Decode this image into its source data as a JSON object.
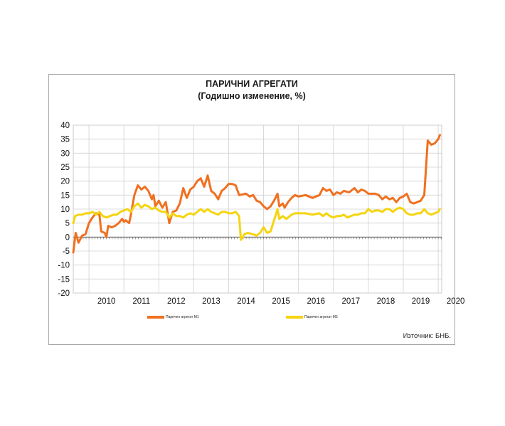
{
  "chart_data": {
    "type": "line",
    "title": "ПАРИЧНИ АГРЕГАТИ",
    "subtitle": "(Годишно изменение, %)",
    "ylim": [
      -20,
      40
    ],
    "yticks": [
      40,
      35,
      30,
      25,
      20,
      15,
      10,
      5,
      0,
      -5,
      -10,
      -15,
      -20
    ],
    "xlim": [
      2009.55,
      2020.1
    ],
    "x_tick_labels": [
      "2010",
      "2011",
      "2012",
      "2013",
      "2014",
      "2015",
      "2016",
      "2017",
      "2018",
      "2019",
      "2020"
    ],
    "grid": true,
    "legend_position": "bottom",
    "series": [
      {
        "name": "Паричен агрегат М1",
        "color": "#f07020",
        "points": [
          [
            2009.55,
            -5.5
          ],
          [
            2009.62,
            1.5
          ],
          [
            2009.7,
            -2
          ],
          [
            2009.8,
            0.5
          ],
          [
            2009.9,
            1
          ],
          [
            2010.0,
            5
          ],
          [
            2010.1,
            7
          ],
          [
            2010.2,
            8.5
          ],
          [
            2010.3,
            8
          ],
          [
            2010.35,
            2
          ],
          [
            2010.45,
            1.5
          ],
          [
            2010.5,
            0
          ],
          [
            2010.55,
            4
          ],
          [
            2010.65,
            3.5
          ],
          [
            2010.75,
            4
          ],
          [
            2010.85,
            5
          ],
          [
            2010.95,
            6.5
          ],
          [
            2011.0,
            5.5
          ],
          [
            2011.05,
            6
          ],
          [
            2011.15,
            5
          ],
          [
            2011.2,
            8
          ],
          [
            2011.3,
            15
          ],
          [
            2011.4,
            18.5
          ],
          [
            2011.5,
            17
          ],
          [
            2011.6,
            18
          ],
          [
            2011.7,
            16.5
          ],
          [
            2011.8,
            13.5
          ],
          [
            2011.85,
            15
          ],
          [
            2011.9,
            11
          ],
          [
            2012.0,
            13
          ],
          [
            2012.1,
            10.5
          ],
          [
            2012.2,
            12.5
          ],
          [
            2012.3,
            5
          ],
          [
            2012.4,
            9
          ],
          [
            2012.5,
            9.5
          ],
          [
            2012.6,
            12
          ],
          [
            2012.7,
            17.5
          ],
          [
            2012.8,
            14
          ],
          [
            2012.9,
            17
          ],
          [
            2013.0,
            18
          ],
          [
            2013.1,
            20
          ],
          [
            2013.2,
            21
          ],
          [
            2013.3,
            18
          ],
          [
            2013.4,
            22
          ],
          [
            2013.5,
            16.5
          ],
          [
            2013.6,
            15.5
          ],
          [
            2013.7,
            13.5
          ],
          [
            2013.8,
            16.5
          ],
          [
            2013.9,
            17.5
          ],
          [
            2014.0,
            19
          ],
          [
            2014.1,
            19
          ],
          [
            2014.2,
            18.5
          ],
          [
            2014.3,
            15
          ],
          [
            2014.5,
            15.5
          ],
          [
            2014.6,
            14.5
          ],
          [
            2014.7,
            15
          ],
          [
            2014.8,
            13
          ],
          [
            2014.9,
            12.5
          ],
          [
            2015.0,
            11
          ],
          [
            2015.1,
            10
          ],
          [
            2015.2,
            11
          ],
          [
            2015.3,
            13
          ],
          [
            2015.4,
            15.5
          ],
          [
            2015.45,
            11
          ],
          [
            2015.55,
            12
          ],
          [
            2015.6,
            10.5
          ],
          [
            2015.7,
            12.5
          ],
          [
            2015.8,
            14
          ],
          [
            2015.9,
            15
          ],
          [
            2016.0,
            14.5
          ],
          [
            2016.2,
            15
          ],
          [
            2016.4,
            14
          ],
          [
            2016.6,
            15
          ],
          [
            2016.7,
            17.5
          ],
          [
            2016.8,
            16.5
          ],
          [
            2016.9,
            17
          ],
          [
            2017.0,
            15
          ],
          [
            2017.1,
            16
          ],
          [
            2017.2,
            15.5
          ],
          [
            2017.3,
            16.5
          ],
          [
            2017.45,
            16
          ],
          [
            2017.6,
            17.5
          ],
          [
            2017.7,
            16
          ],
          [
            2017.8,
            17
          ],
          [
            2017.9,
            16.5
          ],
          [
            2018.0,
            15.5
          ],
          [
            2018.1,
            15.5
          ],
          [
            2018.2,
            15.5
          ],
          [
            2018.3,
            15
          ],
          [
            2018.4,
            13.5
          ],
          [
            2018.5,
            14.5
          ],
          [
            2018.6,
            13.5
          ],
          [
            2018.7,
            14
          ],
          [
            2018.8,
            12.5
          ],
          [
            2018.9,
            14
          ],
          [
            2019.0,
            14.5
          ],
          [
            2019.1,
            15.5
          ],
          [
            2019.2,
            12.5
          ],
          [
            2019.3,
            12
          ],
          [
            2019.4,
            12.5
          ],
          [
            2019.5,
            13
          ],
          [
            2019.6,
            15
          ],
          [
            2019.7,
            34.5
          ],
          [
            2019.8,
            33
          ],
          [
            2019.9,
            33.5
          ],
          [
            2020.0,
            35
          ],
          [
            2020.05,
            36.5
          ]
        ]
      },
      {
        "name": "Паричен агрегат М3",
        "color": "#f5d40f",
        "points": [
          [
            2009.55,
            5
          ],
          [
            2009.6,
            7.5
          ],
          [
            2009.7,
            8
          ],
          [
            2009.8,
            8
          ],
          [
            2009.9,
            8.5
          ],
          [
            2010.0,
            8.5
          ],
          [
            2010.1,
            9
          ],
          [
            2010.2,
            8
          ],
          [
            2010.3,
            9
          ],
          [
            2010.4,
            7.5
          ],
          [
            2010.5,
            7
          ],
          [
            2010.6,
            7.5
          ],
          [
            2010.7,
            8
          ],
          [
            2010.8,
            8
          ],
          [
            2010.9,
            9
          ],
          [
            2011.0,
            9.5
          ],
          [
            2011.1,
            10
          ],
          [
            2011.2,
            9
          ],
          [
            2011.3,
            11
          ],
          [
            2011.4,
            12
          ],
          [
            2011.5,
            10.5
          ],
          [
            2011.6,
            11.5
          ],
          [
            2011.7,
            11
          ],
          [
            2011.8,
            10
          ],
          [
            2011.9,
            10.5
          ],
          [
            2012.0,
            9.5
          ],
          [
            2012.1,
            9
          ],
          [
            2012.2,
            9
          ],
          [
            2012.3,
            7
          ],
          [
            2012.4,
            8.5
          ],
          [
            2012.5,
            7.5
          ],
          [
            2012.6,
            7.5
          ],
          [
            2012.7,
            7
          ],
          [
            2012.8,
            8
          ],
          [
            2012.9,
            8.5
          ],
          [
            2013.0,
            8
          ],
          [
            2013.1,
            9
          ],
          [
            2013.2,
            10
          ],
          [
            2013.3,
            9
          ],
          [
            2013.4,
            10
          ],
          [
            2013.5,
            9
          ],
          [
            2013.6,
            8.5
          ],
          [
            2013.7,
            8
          ],
          [
            2013.8,
            9
          ],
          [
            2013.9,
            9
          ],
          [
            2014.0,
            8.5
          ],
          [
            2014.1,
            8.5
          ],
          [
            2014.2,
            9
          ],
          [
            2014.3,
            7.5
          ],
          [
            2014.35,
            -1
          ],
          [
            2014.45,
            1
          ],
          [
            2014.55,
            1.5
          ],
          [
            2014.7,
            1
          ],
          [
            2014.8,
            0.5
          ],
          [
            2014.9,
            1.5
          ],
          [
            2015.0,
            3.5
          ],
          [
            2015.1,
            1.5
          ],
          [
            2015.2,
            2
          ],
          [
            2015.3,
            6
          ],
          [
            2015.4,
            10
          ],
          [
            2015.45,
            6.5
          ],
          [
            2015.55,
            7.5
          ],
          [
            2015.65,
            6.5
          ],
          [
            2015.8,
            8
          ],
          [
            2015.9,
            8.5
          ],
          [
            2016.0,
            8.5
          ],
          [
            2016.2,
            8.5
          ],
          [
            2016.4,
            8
          ],
          [
            2016.6,
            8.5
          ],
          [
            2016.7,
            7.5
          ],
          [
            2016.8,
            8.5
          ],
          [
            2016.9,
            7.5
          ],
          [
            2017.0,
            7
          ],
          [
            2017.1,
            7.5
          ],
          [
            2017.2,
            7.5
          ],
          [
            2017.3,
            8
          ],
          [
            2017.4,
            7
          ],
          [
            2017.5,
            7.5
          ],
          [
            2017.6,
            8
          ],
          [
            2017.7,
            8
          ],
          [
            2017.8,
            8.5
          ],
          [
            2017.9,
            8.5
          ],
          [
            2018.0,
            10
          ],
          [
            2018.1,
            9
          ],
          [
            2018.2,
            9.5
          ],
          [
            2018.3,
            9.5
          ],
          [
            2018.4,
            9
          ],
          [
            2018.5,
            10
          ],
          [
            2018.6,
            10
          ],
          [
            2018.7,
            9
          ],
          [
            2018.8,
            10
          ],
          [
            2018.9,
            10.5
          ],
          [
            2019.0,
            10
          ],
          [
            2019.1,
            8.5
          ],
          [
            2019.2,
            8
          ],
          [
            2019.3,
            8
          ],
          [
            2019.4,
            8.5
          ],
          [
            2019.5,
            8.5
          ],
          [
            2019.6,
            10
          ],
          [
            2019.7,
            8.5
          ],
          [
            2019.8,
            8
          ],
          [
            2019.9,
            8.5
          ],
          [
            2020.0,
            9
          ],
          [
            2020.05,
            10
          ]
        ]
      }
    ]
  },
  "source_note": "Източник: БНБ."
}
